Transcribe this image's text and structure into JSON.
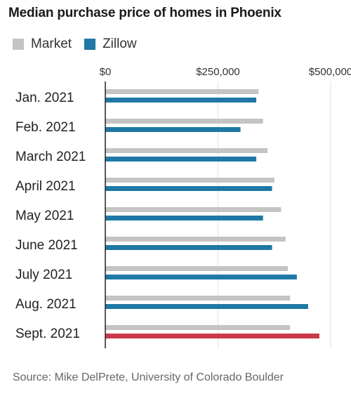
{
  "title": "Median purchase price of homes in Phoenix",
  "source": "Source: Mike DelPrete, University of Colorado Boulder",
  "colors": {
    "market": "#c4c4c4",
    "zillow": "#1f78a6",
    "highlight": "#c9394a",
    "gridline": "#e2e2e2",
    "axis": "#222222"
  },
  "chart_data": {
    "type": "bar",
    "orientation": "horizontal",
    "title": "Median purchase price of homes in Phoenix",
    "categories": [
      "Jan. 2021",
      "Feb. 2021",
      "March 2021",
      "April 2021",
      "May 2021",
      "June 2021",
      "July 2021",
      "Aug. 2021",
      "Sept. 2021"
    ],
    "series": [
      {
        "name": "Market",
        "values": [
          340000,
          350000,
          360000,
          375000,
          390000,
          400000,
          405000,
          410000,
          410000
        ]
      },
      {
        "name": "Zillow",
        "values": [
          335000,
          300000,
          335000,
          370000,
          350000,
          370000,
          425000,
          450000,
          475000
        ]
      }
    ],
    "highlight": {
      "series": "Zillow",
      "category": "Sept. 2021"
    },
    "xlim": [
      0,
      500000
    ],
    "xticks": [
      0,
      250000,
      500000
    ],
    "xtick_labels": [
      "$0",
      "$250,000",
      "$500,000"
    ],
    "xlabel": "",
    "ylabel": "",
    "grid": true,
    "legend": "top-left"
  }
}
